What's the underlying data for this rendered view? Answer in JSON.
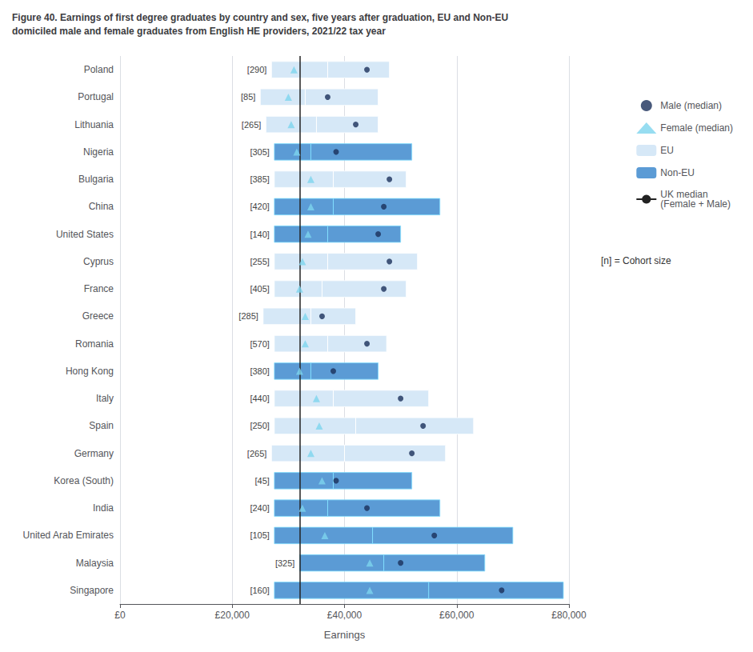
{
  "chart_data": {
    "type": "range_bar",
    "orientation": "horizontal",
    "title": "Figure 40. Earnings of first degree graduates by country and sex, five years after graduation, EU and Non-EU\ndomiciled male and female graduates from English HE providers, 2021/22 tax year",
    "xlabel": "Earnings",
    "categories": [
      "Poland",
      "Portugal",
      "Lithuania",
      "Nigeria",
      "Bulgaria",
      "China",
      "United States",
      "Cyprus",
      "France",
      "Greece",
      "Romania",
      "Hong Kong",
      "Italy",
      "Spain",
      "Germany",
      "Korea (South)",
      "India",
      "United Arab Emirates",
      "Malaysia",
      "Singapore"
    ],
    "cohort_sizes": [
      290,
      85,
      265,
      305,
      385,
      420,
      140,
      255,
      405,
      285,
      570,
      380,
      440,
      250,
      265,
      45,
      240,
      105,
      325,
      160
    ],
    "cohort_size_labels": [
      "[290]",
      "[85]",
      "[265]",
      "[305]",
      "[385]",
      "[420]",
      "[140]",
      "[255]",
      "[405]",
      "[285]",
      "[570]",
      "[380]",
      "[440]",
      "[250]",
      "[265]",
      "[45]",
      "[240]",
      "[105]",
      "[325]",
      "[160]"
    ],
    "series": [
      {
        "name": "Male (median)",
        "type": "scatter",
        "marker": "circle",
        "color": "#1a2f5a",
        "values": [
          44000,
          37000,
          42000,
          38500,
          48000,
          47000,
          46000,
          48000,
          47000,
          36000,
          44000,
          38000,
          50000,
          54000,
          52000,
          38500,
          44000,
          56000,
          50000,
          68000
        ]
      },
      {
        "name": "Female (median)",
        "type": "scatter",
        "marker": "triangle",
        "color": "#7dd4ee",
        "values": [
          31000,
          30000,
          30500,
          31500,
          34000,
          34000,
          33500,
          32500,
          32000,
          33000,
          33000,
          32000,
          35000,
          35500,
          34000,
          36000,
          32500,
          36500,
          44500,
          44500
        ]
      },
      {
        "name": "EU",
        "type": "box",
        "color": "#d6e8f7",
        "low": [
          27000,
          25000,
          26000,
          null,
          27500,
          null,
          null,
          27500,
          27500,
          25500,
          27500,
          null,
          27500,
          27500,
          27000,
          null,
          null,
          null,
          null,
          null
        ],
        "high": [
          48000,
          46000,
          46000,
          null,
          51000,
          null,
          null,
          53000,
          51000,
          42000,
          47500,
          null,
          55000,
          63000,
          58000,
          null,
          null,
          null,
          null,
          null
        ],
        "median": [
          37000,
          33000,
          35000,
          null,
          38000,
          null,
          null,
          37000,
          36000,
          34000,
          37000,
          null,
          38000,
          42000,
          40000,
          null,
          null,
          null,
          null,
          null
        ]
      },
      {
        "name": "Non-EU",
        "type": "box",
        "color": "#5b9bd5",
        "low": [
          null,
          null,
          null,
          27500,
          null,
          27500,
          27500,
          null,
          null,
          null,
          null,
          27500,
          null,
          null,
          null,
          27500,
          27500,
          27500,
          32000,
          27500
        ],
        "high": [
          null,
          null,
          null,
          52000,
          null,
          57000,
          50000,
          null,
          null,
          null,
          null,
          46000,
          null,
          null,
          null,
          52000,
          57000,
          70000,
          65000,
          79000
        ],
        "median": [
          null,
          null,
          null,
          34000,
          null,
          38000,
          37000,
          null,
          null,
          null,
          null,
          34000,
          null,
          null,
          null,
          38000,
          37000,
          45000,
          47000,
          55000
        ]
      }
    ],
    "reference_lines": [
      {
        "name": "UK median\n(Female + Male)",
        "value": 32000,
        "color": "#222222"
      }
    ],
    "annotations": [
      "[n] = Cohort size"
    ],
    "xlim": [
      0,
      80000
    ],
    "xticks": [
      {
        "value": 0,
        "label": "£0"
      },
      {
        "value": 20000,
        "label": "£20,000"
      },
      {
        "value": 40000,
        "label": "£40,000"
      },
      {
        "value": 60000,
        "label": "£60,000"
      },
      {
        "value": 80000,
        "label": "£80,000"
      }
    ],
    "grid": true,
    "legend": "right"
  }
}
